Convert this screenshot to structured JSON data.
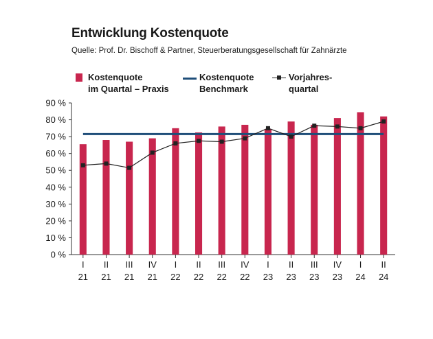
{
  "header": {
    "title": "Entwicklung Kostenquote",
    "source": "Quelle: Prof. Dr. Bischoff & Partner, Steuerberatungsgesellschaft für Zahnärzte"
  },
  "legend": {
    "bar_line1": "Kostenquote",
    "bar_line2": "im Quartal – Praxis",
    "bench_line1": "Kostenquote",
    "bench_line2": "Benchmark",
    "prev_line1": "Vorjahres-",
    "prev_line2": "quartal"
  },
  "colors": {
    "bar": "#c8264e",
    "benchmark": "#1f4e79",
    "previous_year": "#222222"
  },
  "chart_data": {
    "type": "bar",
    "title": "Entwicklung Kostenquote",
    "categories": [
      [
        "I",
        "21"
      ],
      [
        "II",
        "21"
      ],
      [
        "III",
        "21"
      ],
      [
        "IV",
        "21"
      ],
      [
        "I",
        "22"
      ],
      [
        "II",
        "22"
      ],
      [
        "III",
        "22"
      ],
      [
        "IV",
        "22"
      ],
      [
        "I",
        "23"
      ],
      [
        "II",
        "23"
      ],
      [
        "III",
        "23"
      ],
      [
        "IV",
        "23"
      ],
      [
        "I",
        "24"
      ],
      [
        "II",
        "24"
      ]
    ],
    "y_ticks": [
      "0 %",
      "10 %",
      "20 %",
      "30 %",
      "40 %",
      "50 %",
      "60 %",
      "70 %",
      "80 %",
      "90 %"
    ],
    "ylim": [
      0,
      90
    ],
    "grid": false,
    "series": [
      {
        "name": "Kostenquote im Quartal – Praxis",
        "type": "bar",
        "values": [
          65.5,
          68,
          67,
          69,
          75,
          72.5,
          76,
          77,
          74.5,
          79,
          77,
          81,
          84.5,
          82
        ]
      },
      {
        "name": "Kostenquote Benchmark",
        "type": "line",
        "values": [
          71.5,
          71.5,
          71.5,
          71.5,
          71.5,
          71.5,
          71.5,
          71.5,
          71.5,
          71.5,
          71.5,
          71.5,
          71.5,
          71.5
        ]
      },
      {
        "name": "Vorjahresquartal",
        "type": "line-marker",
        "values": [
          53,
          54,
          51.5,
          60.5,
          66,
          67.5,
          67,
          69,
          75,
          70,
          76.5,
          76,
          75,
          79
        ]
      }
    ]
  }
}
